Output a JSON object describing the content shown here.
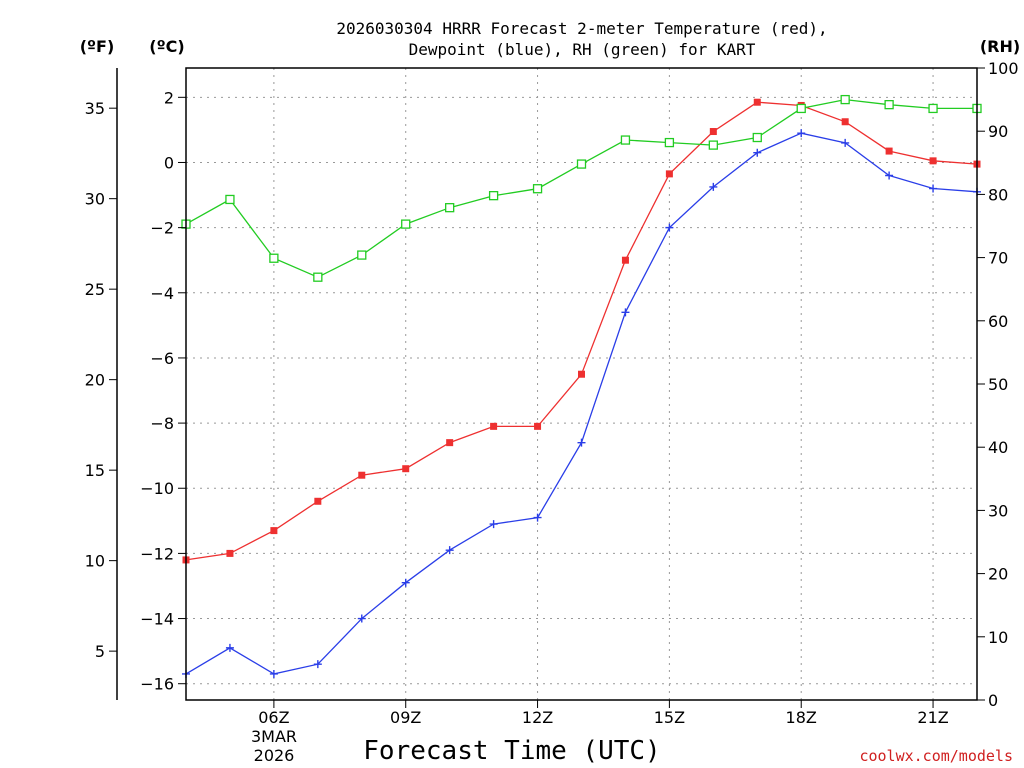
{
  "colors": {
    "temperature": "#ee3030",
    "dewpoint": "#2a3ee8",
    "rh": "#22cc22",
    "credit": "#d02020"
  },
  "chart_data": {
    "type": "line",
    "title": [
      "2026030304 HRRR Forecast 2-meter Temperature (red),",
      "Dewpoint (blue), RH (green) for KART"
    ],
    "xlabel": "Forecast Time (UTC)",
    "date_label": [
      "3MAR",
      "2026"
    ],
    "credit": "coolwx.com/models",
    "units": {
      "fahrenheit": "(ºF)",
      "celsius": "(ºC)",
      "rh": "(RH)"
    },
    "x_hours": [
      4,
      5,
      6,
      7,
      8,
      9,
      10,
      11,
      12,
      13,
      14,
      15,
      16,
      17,
      18,
      19,
      20,
      21,
      22
    ],
    "xlim": [
      4,
      22
    ],
    "x_ticks": [
      {
        "hour": 6,
        "label": "06Z"
      },
      {
        "hour": 9,
        "label": "09Z"
      },
      {
        "hour": 12,
        "label": "12Z"
      },
      {
        "hour": 15,
        "label": "15Z"
      },
      {
        "hour": 18,
        "label": "18Z"
      },
      {
        "hour": 21,
        "label": "21Z"
      }
    ],
    "celsius_axis": {
      "ylim": [
        -16.5,
        2.9
      ],
      "ticks": [
        2,
        0,
        -2,
        -4,
        -6,
        -8,
        -10,
        -12,
        -14,
        -16
      ],
      "tick_labels": [
        "2",
        "0",
        "−2",
        "−4",
        "−6",
        "−8",
        "−10",
        "−12",
        "−14",
        "−16"
      ]
    },
    "fahrenheit_axis": {
      "ticks": [
        35,
        30,
        25,
        20,
        15,
        10,
        5
      ],
      "tick_labels": [
        "35",
        "30",
        "25",
        "20",
        "15",
        "10",
        "5"
      ]
    },
    "rh_axis": {
      "ylim": [
        0,
        100
      ],
      "ticks": [
        100,
        90,
        80,
        70,
        60,
        50,
        40,
        30,
        20,
        10,
        0
      ],
      "tick_labels": [
        "100",
        "90",
        "80",
        "70",
        "60",
        "50",
        "40",
        "30",
        "20",
        "10",
        "0"
      ]
    },
    "series": [
      {
        "name": "Temperature",
        "axis": "celsius",
        "marker": "filled-square",
        "values": [
          -12.2,
          -12.0,
          -11.3,
          -10.4,
          -9.6,
          -9.4,
          -8.6,
          -8.1,
          -8.1,
          -6.5,
          -3.0,
          -0.35,
          0.95,
          1.85,
          1.75,
          1.25,
          0.35,
          0.05,
          -0.05
        ]
      },
      {
        "name": "Dewpoint",
        "axis": "celsius",
        "marker": "plus",
        "values": [
          -15.7,
          -14.9,
          -15.7,
          -15.4,
          -14.0,
          -12.9,
          -11.9,
          -11.1,
          -10.9,
          -8.6,
          -4.6,
          -2.0,
          -0.75,
          0.3,
          0.9,
          0.6,
          -0.4,
          -0.8,
          -0.9
        ]
      },
      {
        "name": "RH",
        "axis": "rh",
        "marker": "open-square",
        "values": [
          75.3,
          79.2,
          69.9,
          66.9,
          70.4,
          75.3,
          77.9,
          79.8,
          80.9,
          84.8,
          88.6,
          88.2,
          87.8,
          89.0,
          93.6,
          95.0,
          94.2,
          93.6,
          93.6
        ]
      }
    ]
  }
}
